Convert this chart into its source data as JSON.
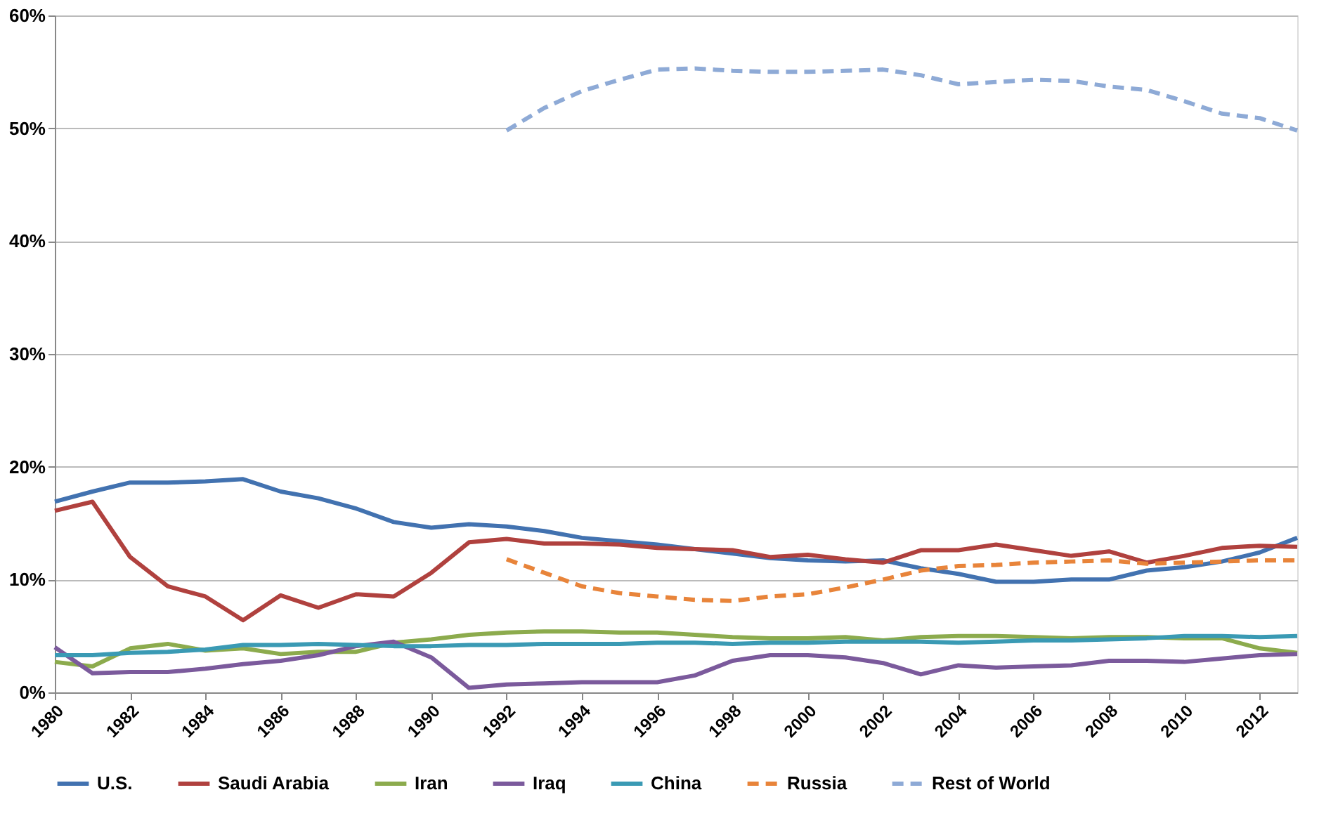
{
  "chart_data": {
    "type": "line",
    "x": [
      1980,
      1981,
      1982,
      1983,
      1984,
      1985,
      1986,
      1987,
      1988,
      1989,
      1990,
      1991,
      1992,
      1993,
      1994,
      1995,
      1996,
      1997,
      1998,
      1999,
      2000,
      2001,
      2002,
      2003,
      2004,
      2005,
      2006,
      2007,
      2008,
      2009,
      2010,
      2011,
      2012,
      2013
    ],
    "xlim": [
      1980,
      2013
    ],
    "xticks": [
      1980,
      1982,
      1984,
      1986,
      1988,
      1990,
      1992,
      1994,
      1996,
      1998,
      2000,
      2002,
      2004,
      2006,
      2008,
      2010,
      2012
    ],
    "ylim": [
      0,
      60
    ],
    "yticks": [
      {
        "value": 0,
        "label": "0%"
      },
      {
        "value": 10,
        "label": "10%"
      },
      {
        "value": 20,
        "label": "20%"
      },
      {
        "value": 30,
        "label": "30%"
      },
      {
        "value": 40,
        "label": "40%"
      },
      {
        "value": 50,
        "label": "50%"
      },
      {
        "value": 60,
        "label": "60%"
      }
    ],
    "grid": "y",
    "legend": "bottom",
    "series": [
      {
        "name": "U.S.",
        "color": "#4272b0",
        "line_style": "solid",
        "values": [
          16.9,
          17.8,
          18.6,
          18.6,
          18.7,
          18.9,
          17.8,
          17.2,
          16.3,
          15.1,
          14.6,
          14.9,
          14.7,
          14.3,
          13.7,
          13.4,
          13.1,
          12.7,
          12.3,
          11.9,
          11.7,
          11.6,
          11.7,
          11.0,
          10.5,
          9.8,
          9.8,
          10.0,
          10.0,
          10.8,
          11.1,
          11.6,
          12.4,
          13.7
        ]
      },
      {
        "name": "Saudi Arabia",
        "color": "#b0413e",
        "line_style": "solid",
        "values": [
          16.1,
          16.9,
          12.0,
          9.4,
          8.5,
          6.4,
          8.6,
          7.5,
          8.7,
          8.5,
          10.6,
          13.3,
          13.6,
          13.2,
          13.2,
          13.1,
          12.8,
          12.7,
          12.6,
          12.0,
          12.2,
          11.8,
          11.5,
          12.6,
          12.6,
          13.1,
          12.6,
          12.1,
          12.5,
          11.5,
          12.1,
          12.8,
          13.0,
          12.9
        ]
      },
      {
        "name": "Iran",
        "color": "#8cab4d",
        "line_style": "solid",
        "values": [
          2.7,
          2.3,
          3.9,
          4.3,
          3.7,
          3.9,
          3.4,
          3.6,
          3.6,
          4.4,
          4.7,
          5.1,
          5.3,
          5.4,
          5.4,
          5.3,
          5.3,
          5.1,
          4.9,
          4.8,
          4.8,
          4.9,
          4.6,
          4.9,
          5.0,
          5.0,
          4.9,
          4.8,
          4.9,
          4.9,
          4.8,
          4.8,
          3.9,
          3.5
        ]
      },
      {
        "name": "Iraq",
        "color": "#7b5a9c",
        "line_style": "solid",
        "values": [
          4.0,
          1.7,
          1.8,
          1.8,
          2.1,
          2.5,
          2.8,
          3.3,
          4.1,
          4.5,
          3.1,
          0.4,
          0.7,
          0.8,
          0.9,
          0.9,
          0.9,
          1.5,
          2.8,
          3.3,
          3.3,
          3.1,
          2.6,
          1.6,
          2.4,
          2.2,
          2.3,
          2.4,
          2.8,
          2.8,
          2.7,
          3.0,
          3.3,
          3.4
        ]
      },
      {
        "name": "China",
        "color": "#3a9ab4",
        "line_style": "solid",
        "values": [
          3.3,
          3.3,
          3.5,
          3.6,
          3.8,
          4.2,
          4.2,
          4.3,
          4.2,
          4.1,
          4.1,
          4.2,
          4.2,
          4.3,
          4.3,
          4.3,
          4.4,
          4.4,
          4.3,
          4.4,
          4.4,
          4.5,
          4.5,
          4.5,
          4.4,
          4.5,
          4.6,
          4.6,
          4.7,
          4.8,
          5.0,
          5.0,
          4.9,
          5.0
        ]
      },
      {
        "name": "Russia",
        "color": "#e8843a",
        "line_style": "dashed",
        "x": [
          1992,
          1993,
          1994,
          1995,
          1996,
          1997,
          1998,
          1999,
          2000,
          2001,
          2002,
          2003,
          2004,
          2005,
          2006,
          2007,
          2008,
          2009,
          2010,
          2011,
          2012,
          2013
        ],
        "values": [
          11.8,
          10.6,
          9.4,
          8.8,
          8.5,
          8.2,
          8.1,
          8.5,
          8.7,
          9.3,
          10.0,
          10.8,
          11.2,
          11.3,
          11.5,
          11.6,
          11.7,
          11.4,
          11.5,
          11.6,
          11.7,
          11.7
        ]
      },
      {
        "name": "Rest of World",
        "color": "#8eaad6",
        "line_style": "dashed",
        "x": [
          1992,
          1993,
          1994,
          1995,
          1996,
          1997,
          1998,
          1999,
          2000,
          2001,
          2002,
          2003,
          2004,
          2005,
          2006,
          2007,
          2008,
          2009,
          2010,
          2011,
          2012,
          2013
        ],
        "values": [
          49.8,
          51.8,
          53.3,
          54.3,
          55.2,
          55.3,
          55.1,
          55.0,
          55.0,
          55.1,
          55.2,
          54.7,
          53.9,
          54.1,
          54.3,
          54.2,
          53.7,
          53.4,
          52.4,
          51.3,
          50.9,
          49.8
        ]
      }
    ]
  }
}
